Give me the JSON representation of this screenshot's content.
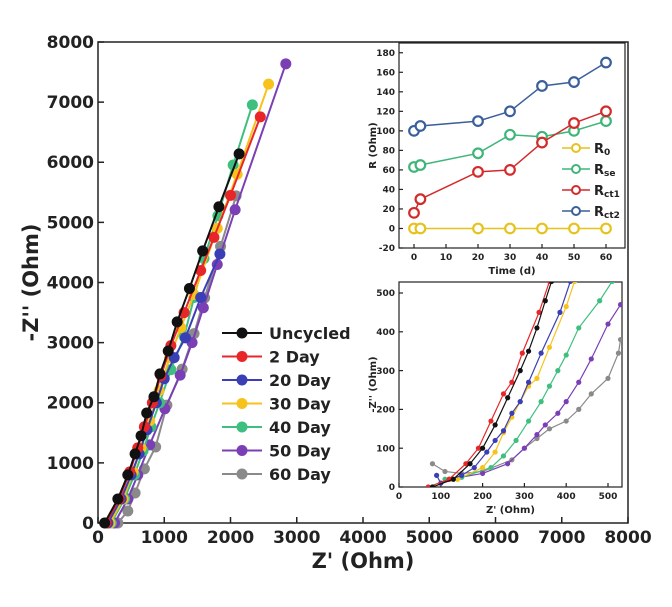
{
  "chart_data": [
    {
      "type": "scatter",
      "xlabel": "Z' (Ohm)",
      "ylabel": "-Z'' (Ohm)",
      "xlim": [
        0,
        8000
      ],
      "ylim": [
        0,
        8000
      ],
      "xticks": [
        0,
        1000,
        2000,
        3000,
        4000,
        5000,
        6000,
        7000,
        8000
      ],
      "yticks": [
        0,
        1000,
        2000,
        3000,
        4000,
        5000,
        6000,
        7000,
        8000
      ],
      "legend_position": "center",
      "series": [
        {
          "name": "Uncycled",
          "color": "#111111",
          "points": [
            [
              100,
              0
            ],
            [
              300,
              400
            ],
            [
              450,
              800
            ],
            [
              560,
              1150
            ],
            [
              650,
              1450
            ],
            [
              735,
              1830
            ],
            [
              845,
              2100
            ],
            [
              935,
              2480
            ],
            [
              1060,
              2860
            ],
            [
              1195,
              3345
            ],
            [
              1380,
              3900
            ],
            [
              1580,
              4525
            ],
            [
              1825,
              5260
            ],
            [
              2130,
              6140
            ]
          ]
        },
        {
          "name": "2 Day",
          "color": "#e8262a",
          "points": [
            [
              120,
              0
            ],
            [
              320,
              400
            ],
            [
              480,
              850
            ],
            [
              600,
              1250
            ],
            [
              700,
              1600
            ],
            [
              820,
              2000
            ],
            [
              950,
              2450
            ],
            [
              1100,
              2950
            ],
            [
              1300,
              3500
            ],
            [
              1550,
              4200
            ],
            [
              1750,
              4750
            ],
            [
              2000,
              5450
            ],
            [
              2450,
              6755
            ]
          ]
        },
        {
          "name": "20 Day",
          "color": "#3a3fb5",
          "points": [
            [
              150,
              0
            ],
            [
              350,
              400
            ],
            [
              500,
              800
            ],
            [
              620,
              1150
            ],
            [
              740,
              1550
            ],
            [
              880,
              2000
            ],
            [
              1000,
              2400
            ],
            [
              1150,
              2750
            ],
            [
              1320,
              3080
            ],
            [
              1550,
              3750
            ],
            [
              1840,
              4475
            ]
          ]
        },
        {
          "name": "30 Day",
          "color": "#f7c21c",
          "points": [
            [
              180,
              0
            ],
            [
              380,
              400
            ],
            [
              530,
              850
            ],
            [
              650,
              1250
            ],
            [
              780,
              1700
            ],
            [
              920,
              2200
            ],
            [
              1080,
              2750
            ],
            [
              1250,
              3250
            ],
            [
              1450,
              3800
            ],
            [
              1800,
              4900
            ],
            [
              2100,
              5800
            ],
            [
              2575,
              7300
            ]
          ]
        },
        {
          "name": "40 Day",
          "color": "#3fbf7f",
          "points": [
            [
              200,
              0
            ],
            [
              400,
              400
            ],
            [
              550,
              800
            ],
            [
              680,
              1200
            ],
            [
              800,
              1600
            ],
            [
              930,
              2000
            ],
            [
              1100,
              2550
            ],
            [
              1300,
              3100
            ],
            [
              1450,
              3750
            ],
            [
              1600,
              4400
            ],
            [
              1810,
              5110
            ],
            [
              2040,
              5955
            ],
            [
              2330,
              6955
            ]
          ]
        },
        {
          "name": "50 Day",
          "color": "#7b3fb5",
          "points": [
            [
              250,
              0
            ],
            [
              450,
              400
            ],
            [
              600,
              800
            ],
            [
              780,
              1300
            ],
            [
              1010,
              1900
            ],
            [
              1240,
              2460
            ],
            [
              1420,
              3000
            ],
            [
              1590,
              3580
            ],
            [
              1800,
              4300
            ],
            [
              2070,
              5210
            ],
            [
              2835,
              7637
            ]
          ]
        },
        {
          "name": "60 Day",
          "color": "#8a8a8a",
          "points": [
            [
              300,
              0
            ],
            [
              450,
              200
            ],
            [
              560,
              500
            ],
            [
              700,
              900
            ],
            [
              870,
              1265
            ],
            [
              1040,
              1960
            ],
            [
              1270,
              2560
            ],
            [
              1450,
              3150
            ],
            [
              1610,
              3745
            ],
            [
              1850,
              4600
            ],
            [
              2085,
              5440
            ]
          ]
        }
      ]
    },
    {
      "type": "line",
      "xlabel": "Time (d)",
      "ylabel": "R (Ohm)",
      "xlim": [
        -5,
        65
      ],
      "ylim": [
        -20,
        190
      ],
      "xticks": [
        0,
        10,
        20,
        30,
        40,
        50,
        60
      ],
      "yticks": [
        -20,
        0,
        20,
        40,
        60,
        80,
        100,
        120,
        140,
        160,
        180
      ],
      "legend_position": "right",
      "x": [
        0,
        2,
        20,
        30,
        40,
        50,
        60
      ],
      "series": [
        {
          "name": "R0",
          "label": "R",
          "sub": "0",
          "color": "#e8c21c",
          "values": [
            0,
            0,
            0,
            0,
            0,
            0,
            0
          ]
        },
        {
          "name": "Rse",
          "label": "R",
          "sub": "se",
          "color": "#3fb57a",
          "values": [
            63,
            65,
            77,
            96,
            94,
            100,
            110
          ]
        },
        {
          "name": "Rct1",
          "label": "R",
          "sub": "ct1",
          "color": "#d42a2a",
          "values": [
            16,
            30,
            58,
            60,
            88,
            108,
            120
          ]
        },
        {
          "name": "Rct2",
          "label": "R",
          "sub": "ct2",
          "color": "#3a5f9a",
          "values": [
            100,
            105,
            110,
            120,
            146,
            150,
            170
          ]
        }
      ]
    },
    {
      "type": "line",
      "xlabel": "Z' (Ohm)",
      "ylabel": "-Z'' (Ohm)",
      "xlim": [
        0,
        530
      ],
      "ylim": [
        0,
        530
      ],
      "xticks": [
        0,
        100,
        200,
        300,
        400,
        500
      ],
      "yticks": [
        0,
        100,
        200,
        300,
        400,
        500
      ],
      "series": [
        {
          "name": "Uncycled",
          "color": "#111111",
          "points": [
            [
              80,
              0
            ],
            [
              130,
              20
            ],
            [
              170,
              60
            ],
            [
              200,
              100
            ],
            [
              230,
              160
            ],
            [
              260,
              230
            ],
            [
              290,
              300
            ],
            [
              310,
              350
            ],
            [
              330,
              410
            ],
            [
              350,
              480
            ],
            [
              365,
              530
            ]
          ]
        },
        {
          "name": "2 Day",
          "color": "#e8262a",
          "points": [
            [
              70,
              0
            ],
            [
              120,
              20
            ],
            [
              160,
              60
            ],
            [
              190,
              100
            ],
            [
              220,
              170
            ],
            [
              250,
              240
            ],
            [
              270,
              270
            ],
            [
              295,
              345
            ],
            [
              335,
              450
            ],
            [
              360,
              530
            ]
          ]
        },
        {
          "name": "20 Day",
          "color": "#3a3fb5",
          "points": [
            [
              90,
              30
            ],
            [
              100,
              10
            ],
            [
              150,
              30
            ],
            [
              180,
              50
            ],
            [
              210,
              90
            ],
            [
              230,
              120
            ],
            [
              250,
              145
            ],
            [
              270,
              190
            ],
            [
              290,
              220
            ],
            [
              310,
              270
            ],
            [
              340,
              345
            ],
            [
              385,
              450
            ],
            [
              410,
              530
            ]
          ]
        },
        {
          "name": "30 Day",
          "color": "#f7c21c",
          "points": [
            [
              100,
              10
            ],
            [
              140,
              20
            ],
            [
              200,
              50
            ],
            [
              230,
              90
            ],
            [
              250,
              140
            ],
            [
              270,
              180
            ],
            [
              290,
              220
            ],
            [
              310,
              260
            ],
            [
              330,
              280
            ],
            [
              360,
              360
            ],
            [
              400,
              465
            ],
            [
              420,
              530
            ]
          ]
        },
        {
          "name": "40 Day",
          "color": "#3fbf7f",
          "points": [
            [
              110,
              20
            ],
            [
              150,
              25
            ],
            [
              220,
              50
            ],
            [
              250,
              80
            ],
            [
              280,
              120
            ],
            [
              310,
              170
            ],
            [
              340,
              220
            ],
            [
              360,
              260
            ],
            [
              380,
              300
            ],
            [
              400,
              340
            ],
            [
              430,
              410
            ],
            [
              480,
              480
            ],
            [
              510,
              530
            ]
          ]
        },
        {
          "name": "50 Day",
          "color": "#7b3fb5",
          "points": [
            [
              120,
              20
            ],
            [
              200,
              35
            ],
            [
              260,
              60
            ],
            [
              300,
              100
            ],
            [
              330,
              135
            ],
            [
              350,
              160
            ],
            [
              380,
              190
            ],
            [
              400,
              220
            ],
            [
              430,
              270
            ],
            [
              460,
              330
            ],
            [
              500,
              420
            ],
            [
              530,
              470
            ]
          ]
        },
        {
          "name": "60 Day",
          "color": "#8a8a8a",
          "points": [
            [
              80,
              60
            ],
            [
              110,
              40
            ],
            [
              150,
              35
            ],
            [
              200,
              40
            ],
            [
              270,
              70
            ],
            [
              300,
              100
            ],
            [
              330,
              125
            ],
            [
              360,
              150
            ],
            [
              400,
              170
            ],
            [
              430,
              200
            ],
            [
              460,
              240
            ],
            [
              500,
              280
            ],
            [
              525,
              345
            ],
            [
              530,
              380
            ]
          ]
        }
      ]
    }
  ]
}
